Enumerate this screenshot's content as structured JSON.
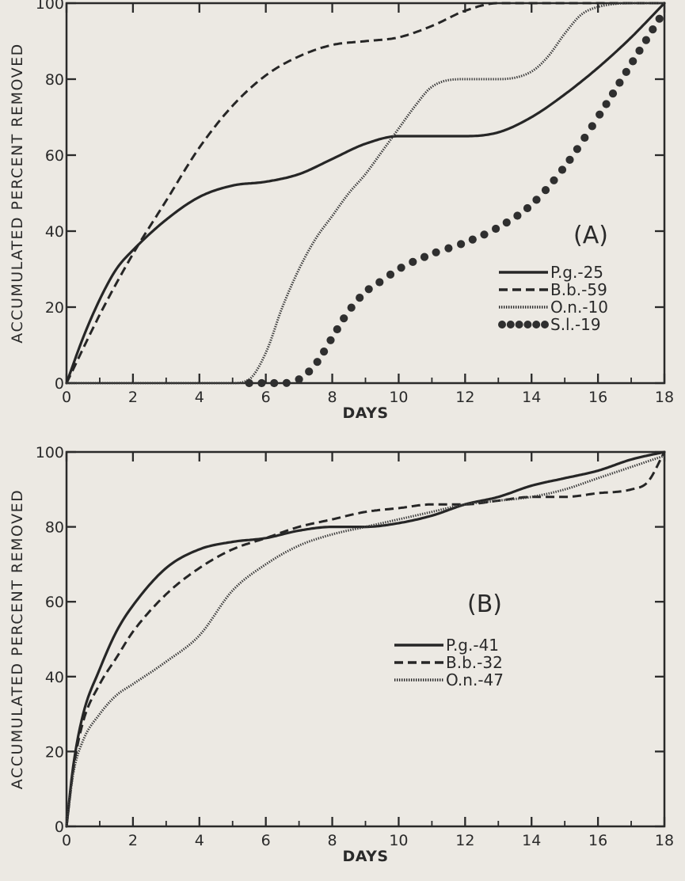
{
  "chart_data": [
    {
      "type": "line",
      "panel_label": "(A)",
      "xlabel": "DAYS",
      "ylabel": "ACCUMULATED   PERCENT   REMOVED",
      "xlim": [
        0,
        18
      ],
      "ylim": [
        0,
        100
      ],
      "x_ticks": [
        0,
        2,
        4,
        6,
        8,
        10,
        12,
        14,
        16,
        18
      ],
      "y_ticks": [
        0,
        20,
        40,
        60,
        80,
        100
      ],
      "legend_position": "center-right",
      "series": [
        {
          "name": "P.g.-25",
          "style": "solid",
          "x": [
            0,
            0.5,
            1,
            1.5,
            2,
            3,
            4,
            5,
            6,
            7,
            8,
            9,
            10,
            11,
            12,
            13,
            14,
            15,
            16,
            17,
            18
          ],
          "y": [
            0,
            12,
            22,
            30,
            35,
            43,
            49,
            52,
            53,
            55,
            59,
            63,
            65,
            65,
            65,
            66,
            70,
            76,
            83,
            91,
            100
          ]
        },
        {
          "name": "B.b.-59",
          "style": "dashed",
          "x": [
            0,
            1,
            2,
            3,
            4,
            5,
            6,
            7,
            8,
            9,
            10,
            11,
            12,
            13,
            14,
            15,
            16,
            17,
            18
          ],
          "y": [
            0,
            18,
            34,
            48,
            62,
            73,
            81,
            86,
            89,
            90,
            91,
            94,
            98,
            100,
            100,
            100,
            100,
            100,
            100
          ]
        },
        {
          "name": "O.n.-10",
          "style": "dotted",
          "x": [
            0,
            2,
            4,
            5,
            5.5,
            6,
            6.5,
            7,
            7.5,
            8,
            8.5,
            9,
            9.5,
            10,
            10.5,
            11,
            12,
            13,
            14,
            14.5,
            15,
            15.5,
            16,
            17,
            18
          ],
          "y": [
            0,
            0,
            0,
            0,
            1,
            8,
            20,
            30,
            38,
            44,
            50,
            55,
            61,
            67,
            73,
            78,
            80,
            80,
            82,
            86,
            92,
            97,
            99,
            100,
            100
          ]
        },
        {
          "name": "S.l.-19",
          "style": "beaded",
          "x": [
            5.5,
            6,
            6.5,
            7,
            7.5,
            8,
            8.5,
            9,
            9.5,
            10,
            11,
            12,
            13,
            14,
            15,
            16,
            17,
            18
          ],
          "y": [
            0,
            0,
            0,
            1,
            5,
            12,
            19,
            24,
            27,
            30,
            34,
            37,
            41,
            47,
            57,
            70,
            84,
            98
          ]
        }
      ]
    },
    {
      "type": "line",
      "panel_label": "(B)",
      "xlabel": "DAYS",
      "ylabel": "ACCUMULATED   PERCENT   REMOVED",
      "xlim": [
        0,
        18
      ],
      "ylim": [
        0,
        100
      ],
      "x_ticks": [
        0,
        2,
        4,
        6,
        8,
        10,
        12,
        14,
        16,
        18
      ],
      "y_ticks": [
        0,
        20,
        40,
        60,
        80,
        100
      ],
      "legend_position": "center",
      "series": [
        {
          "name": "P.g.-41",
          "style": "solid",
          "x": [
            0,
            0.2,
            0.5,
            1,
            1.5,
            2,
            3,
            4,
            5,
            6,
            7,
            8,
            9,
            10,
            11,
            12,
            13,
            14,
            15,
            16,
            17,
            18
          ],
          "y": [
            0,
            16,
            30,
            42,
            52,
            59,
            69,
            74,
            76,
            77,
            79,
            80,
            80,
            81,
            83,
            86,
            88,
            91,
            93,
            95,
            98,
            100
          ]
        },
        {
          "name": "B.b.-32",
          "style": "dashed",
          "x": [
            0,
            0.2,
            0.5,
            1,
            1.5,
            2,
            3,
            4,
            5,
            6,
            7,
            8,
            9,
            10,
            11,
            12,
            13,
            14,
            15,
            16,
            17,
            17.5,
            18
          ],
          "y": [
            0,
            15,
            28,
            38,
            45,
            52,
            62,
            69,
            74,
            77,
            80,
            82,
            84,
            85,
            86,
            86,
            87,
            88,
            88,
            89,
            90,
            92,
            100
          ]
        },
        {
          "name": "O.n.-47",
          "style": "dotted",
          "x": [
            0,
            0.2,
            0.5,
            1,
            1.5,
            2,
            3,
            4,
            5,
            6,
            7,
            8,
            9,
            10,
            11,
            12,
            13,
            14,
            15,
            16,
            17,
            18
          ],
          "y": [
            0,
            14,
            23,
            30,
            35,
            38,
            44,
            51,
            63,
            70,
            75,
            78,
            80,
            82,
            84,
            86,
            87,
            88,
            90,
            93,
            96,
            99
          ]
        }
      ]
    }
  ]
}
